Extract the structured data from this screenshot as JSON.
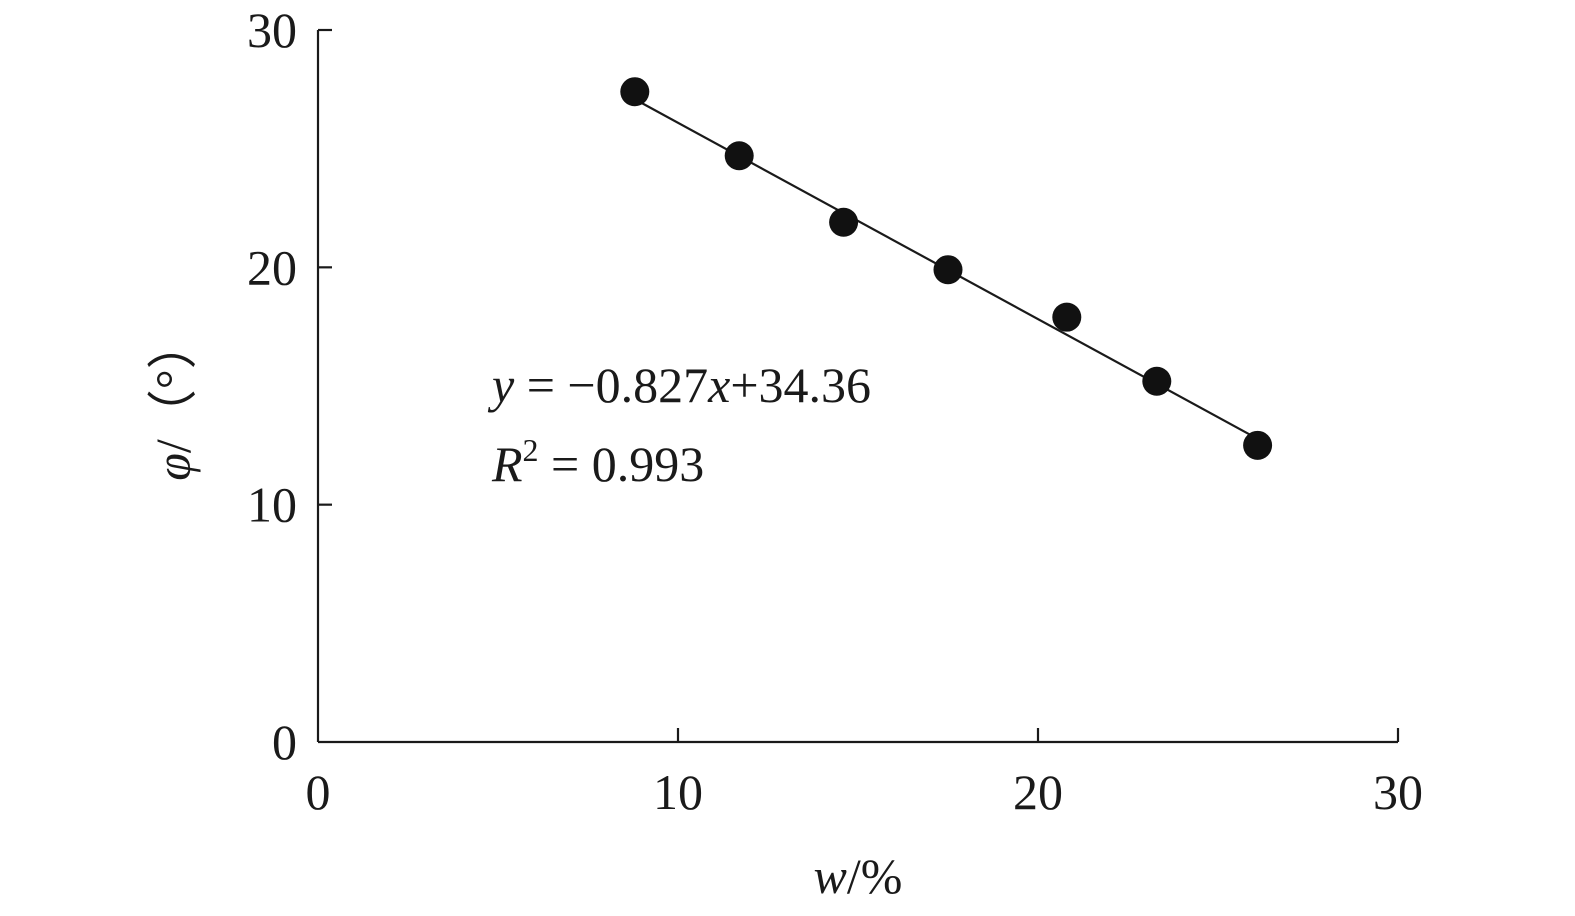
{
  "chart_data": {
    "type": "scatter",
    "title": "",
    "xlabel": "w/%",
    "xlabel_parts": {
      "var": "w",
      "unit": "/%"
    },
    "ylabel": "φ/（°）",
    "ylabel_parts": {
      "var": "φ",
      "unit": "/（°）"
    },
    "xlim": [
      0,
      30
    ],
    "ylim": [
      0,
      30
    ],
    "xticks": [
      0,
      10,
      20,
      30
    ],
    "yticks": [
      0,
      10,
      20,
      30
    ],
    "xtick_labels": [
      "0",
      "10",
      "20",
      "30"
    ],
    "ytick_labels": [
      "0",
      "10",
      "20",
      "30"
    ],
    "grid": false,
    "series": [
      {
        "x": [
          8.8,
          11.7,
          14.6,
          17.5,
          20.8,
          23.3,
          26.1
        ],
        "y": [
          27.4,
          24.7,
          21.9,
          19.9,
          17.9,
          15.2,
          12.5
        ]
      }
    ],
    "fit": {
      "slope": -0.827,
      "intercept": 34.36,
      "x_range": [
        8.8,
        26.1
      ]
    },
    "annotations": {
      "equation": {
        "y": "y",
        "eq": " = −0.827",
        "x": "x",
        "rest": "+34.36"
      },
      "r2": {
        "R": "R",
        "sup": "2",
        "rest": " = 0.993"
      }
    },
    "colors": {
      "axis": "#1a1a1a",
      "marker": "#111111",
      "line": "#1a1a1a"
    }
  }
}
